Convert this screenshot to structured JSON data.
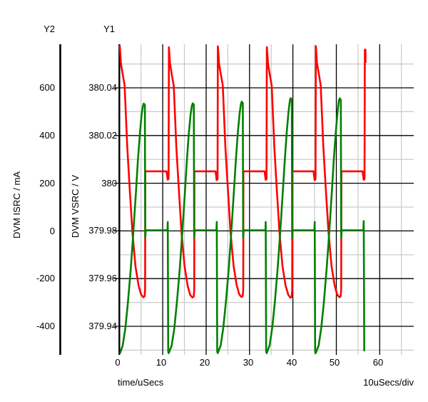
{
  "axes_header": {
    "y2": "Y2",
    "y1": "Y1"
  },
  "chart_data": {
    "type": "line",
    "background": "#ffffff",
    "grid": {
      "major_color": "#000000",
      "minor_color": "#c9c9c9",
      "axis_color": "#000000"
    },
    "x_axis": {
      "label": "time/uSecs",
      "scale_note": "10uSecs/div",
      "tick_labels": [
        "0",
        "10",
        "20",
        "30",
        "40",
        "50",
        "60"
      ],
      "tick_values": [
        0,
        10,
        20,
        30,
        40,
        50,
        60
      ],
      "minor_tick_values": [
        5,
        15,
        25,
        35,
        45,
        55,
        65
      ],
      "range": [
        0,
        68
      ]
    },
    "y_axes": [
      {
        "id": "Y1",
        "title": "DVM VSRC / V",
        "unit": "V",
        "tick_labels": [
          "380.04",
          "380.02",
          "380",
          "379.98",
          "379.96",
          "379.94"
        ],
        "tick_values": [
          380.04,
          380.02,
          380.0,
          379.98,
          379.96,
          379.94
        ],
        "minor_tick_values": [
          380.05,
          380.03,
          380.01,
          379.99,
          379.97,
          379.95,
          379.93
        ],
        "range": [
          379.928,
          380.058
        ]
      },
      {
        "id": "Y2",
        "title": "DVM ISRC / mA",
        "unit": "mA",
        "tick_labels": [
          "600",
          "400",
          "200",
          "0",
          "-200",
          "-400"
        ],
        "tick_values": [
          600,
          400,
          200,
          0,
          -200,
          -400
        ],
        "range": [
          -520,
          783
        ]
      }
    ],
    "series": [
      {
        "name": "DVM VSRC",
        "axis": "Y1",
        "color": "#ff0000",
        "points": [
          [
            0.1,
            380.0578
          ],
          [
            0.37,
            380.05
          ],
          [
            0.82,
            380.0452
          ],
          [
            1.22,
            380.041
          ],
          [
            1.82,
            380.0152
          ],
          [
            2.42,
            379.9968
          ],
          [
            3.02,
            379.9792
          ],
          [
            3.72,
            379.9652
          ],
          [
            4.42,
            379.9572
          ],
          [
            5.02,
            379.9533
          ],
          [
            5.52,
            379.9522
          ],
          [
            5.82,
            379.9526
          ],
          [
            5.94,
            379.9552
          ],
          [
            5.98,
            380.005
          ],
          [
            10.89,
            380.005
          ],
          [
            11.14,
            380.0015
          ],
          [
            11.34,
            380.0018
          ],
          [
            11.42,
            380.057
          ],
          [
            11.69,
            380.0502
          ],
          [
            12.14,
            380.045
          ],
          [
            12.54,
            380.0409
          ],
          [
            13.14,
            380.0151
          ],
          [
            13.74,
            379.9966
          ],
          [
            14.34,
            379.9791
          ],
          [
            15.04,
            379.9651
          ],
          [
            15.74,
            379.9571
          ],
          [
            16.34,
            379.9531
          ],
          [
            16.84,
            379.9521
          ],
          [
            17.14,
            379.9525
          ],
          [
            17.26,
            379.9551
          ],
          [
            17.3,
            380.005
          ],
          [
            22.18,
            380.005
          ],
          [
            22.43,
            380.0013
          ],
          [
            22.63,
            380.0017
          ],
          [
            22.71,
            380.0574
          ],
          [
            22.98,
            380.0501
          ],
          [
            23.43,
            380.0453
          ],
          [
            23.83,
            380.0411
          ],
          [
            24.43,
            380.0153
          ],
          [
            25.03,
            379.9969
          ],
          [
            25.63,
            379.9793
          ],
          [
            26.33,
            379.9653
          ],
          [
            27.03,
            379.9573
          ],
          [
            27.63,
            379.9534
          ],
          [
            28.13,
            379.9523
          ],
          [
            28.43,
            379.9527
          ],
          [
            28.55,
            379.9553
          ],
          [
            28.59,
            380.005
          ],
          [
            33.47,
            380.005
          ],
          [
            33.72,
            380.0014
          ],
          [
            33.92,
            380.0018
          ],
          [
            34.0,
            380.0571
          ],
          [
            34.27,
            380.0499
          ],
          [
            34.72,
            380.0451
          ],
          [
            35.12,
            380.0408
          ],
          [
            35.72,
            380.015
          ],
          [
            36.32,
            379.9965
          ],
          [
            36.92,
            379.979
          ],
          [
            37.62,
            379.965
          ],
          [
            38.32,
            379.957
          ],
          [
            38.92,
            379.9532
          ],
          [
            39.42,
            379.952
          ],
          [
            39.72,
            379.9524
          ],
          [
            39.84,
            379.955
          ],
          [
            39.88,
            380.005
          ],
          [
            44.76,
            380.005
          ],
          [
            45.01,
            380.0013
          ],
          [
            45.21,
            380.0017
          ],
          [
            45.29,
            380.0575
          ],
          [
            45.56,
            380.0502
          ],
          [
            46.01,
            380.0454
          ],
          [
            46.41,
            380.041
          ],
          [
            47.01,
            380.0152
          ],
          [
            47.61,
            379.9967
          ],
          [
            48.21,
            379.9792
          ],
          [
            48.91,
            379.9652
          ],
          [
            49.61,
            379.9572
          ],
          [
            50.21,
            379.9533
          ],
          [
            50.71,
            379.9522
          ],
          [
            51.01,
            379.9526
          ],
          [
            51.13,
            379.9552
          ],
          [
            51.17,
            380.005
          ],
          [
            56.05,
            380.005
          ],
          [
            56.3,
            380.0014
          ],
          [
            56.5,
            380.0018
          ],
          [
            56.58,
            380.056
          ],
          [
            56.72,
            380.056
          ],
          [
            56.75,
            380.0505
          ]
        ]
      },
      {
        "name": "DVM ISRC",
        "axis": "Y2",
        "color": "#008000",
        "points": [
          [
            0.18,
            -512
          ],
          [
            0.78,
            -480
          ],
          [
            1.38,
            -408
          ],
          [
            1.98,
            -300
          ],
          [
            2.63,
            -160
          ],
          [
            3.23,
            -5
          ],
          [
            3.78,
            150
          ],
          [
            4.28,
            295
          ],
          [
            4.73,
            408
          ],
          [
            5.13,
            488
          ],
          [
            5.43,
            524
          ],
          [
            5.63,
            534
          ],
          [
            5.88,
            528
          ],
          [
            5.96,
            -28
          ],
          [
            6.08,
            -2
          ],
          [
            6.2,
            3
          ],
          [
            11.08,
            3
          ],
          [
            11.16,
            38
          ],
          [
            11.26,
            -505
          ],
          [
            11.38,
            -512
          ],
          [
            12.07,
            -480
          ],
          [
            12.67,
            -407
          ],
          [
            13.27,
            -299
          ],
          [
            13.92,
            -159
          ],
          [
            14.52,
            -4
          ],
          [
            15.07,
            151
          ],
          [
            15.57,
            296
          ],
          [
            16.02,
            409
          ],
          [
            16.42,
            489
          ],
          [
            16.72,
            525
          ],
          [
            16.92,
            535
          ],
          [
            17.17,
            529
          ],
          [
            17.25,
            -28
          ],
          [
            17.37,
            -2
          ],
          [
            17.49,
            3
          ],
          [
            22.37,
            3
          ],
          [
            22.45,
            38
          ],
          [
            22.55,
            -505
          ],
          [
            22.67,
            -512
          ],
          [
            23.36,
            -479
          ],
          [
            23.96,
            -406
          ],
          [
            24.56,
            -297
          ],
          [
            25.21,
            -157
          ],
          [
            25.81,
            -2
          ],
          [
            26.36,
            153
          ],
          [
            26.86,
            299
          ],
          [
            27.31,
            412
          ],
          [
            27.71,
            492
          ],
          [
            28.01,
            532
          ],
          [
            28.21,
            542
          ],
          [
            28.46,
            536
          ],
          [
            28.54,
            -28
          ],
          [
            28.66,
            -2
          ],
          [
            28.78,
            3
          ],
          [
            33.66,
            3
          ],
          [
            33.74,
            38
          ],
          [
            33.84,
            -505
          ],
          [
            33.96,
            -512
          ],
          [
            34.65,
            -478
          ],
          [
            35.25,
            -404
          ],
          [
            35.85,
            -295
          ],
          [
            36.5,
            -154
          ],
          [
            37.1,
            1
          ],
          [
            37.65,
            157
          ],
          [
            38.15,
            304
          ],
          [
            38.6,
            419
          ],
          [
            39.0,
            501
          ],
          [
            39.3,
            547
          ],
          [
            39.5,
            557
          ],
          [
            39.75,
            550
          ],
          [
            39.83,
            -28
          ],
          [
            39.95,
            -2
          ],
          [
            40.07,
            3
          ],
          [
            44.95,
            3
          ],
          [
            45.03,
            38
          ],
          [
            45.13,
            -505
          ],
          [
            45.25,
            -512
          ],
          [
            45.94,
            -479
          ],
          [
            46.54,
            -405
          ],
          [
            47.14,
            -296
          ],
          [
            47.79,
            -155
          ],
          [
            48.39,
            0
          ],
          [
            48.94,
            155
          ],
          [
            49.44,
            301
          ],
          [
            49.89,
            416
          ],
          [
            50.29,
            498
          ],
          [
            50.59,
            546
          ],
          [
            50.79,
            556
          ],
          [
            51.04,
            549
          ],
          [
            51.12,
            -28
          ],
          [
            51.24,
            -2
          ],
          [
            51.36,
            3
          ],
          [
            56.24,
            3
          ],
          [
            56.32,
            42
          ],
          [
            56.4,
            -300
          ],
          [
            56.44,
            -504
          ]
        ]
      }
    ]
  }
}
